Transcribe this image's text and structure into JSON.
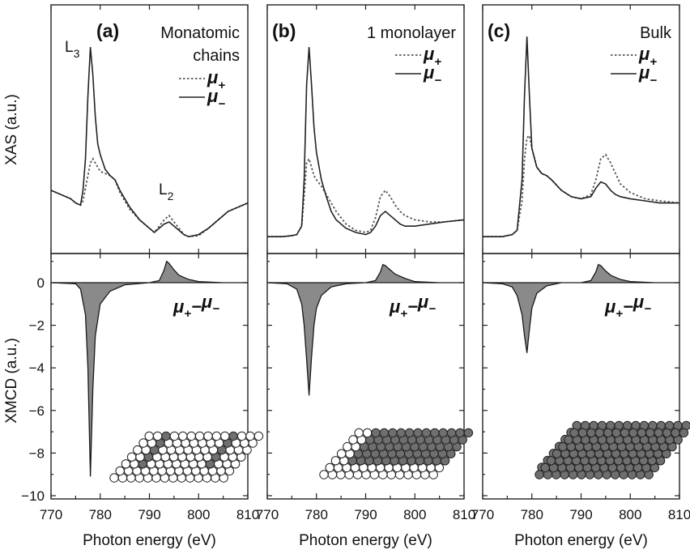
{
  "chart_data": [
    {
      "panel": "a",
      "type": "line",
      "letter": "(a)",
      "title": "Monatomic chains",
      "title_lines": [
        "Monatomic",
        "chains"
      ],
      "edge_labels": {
        "L3": "L",
        "L3_sub": "3",
        "L2": "L",
        "L2_sub": "2"
      },
      "xas": {
        "ylabel": "XAS (a.u.)",
        "ylim": [
          0,
          100
        ],
        "series": [
          {
            "name": "μ+",
            "style": "dotted",
            "x": [
              770,
              772,
              774,
              775,
              776,
              776.5,
              777,
              777.5,
              778,
              778.5,
              779,
              779.5,
              780,
              781,
              782,
              783,
              784,
              786,
              788,
              790,
              791,
              792,
              793,
              794,
              795,
              796,
              797,
              798,
              800,
              802,
              804,
              806,
              808,
              810
            ],
            "y": [
              25,
              23,
              21,
              19,
              18,
              20,
              26,
              32,
              38,
              40,
              38,
              36,
              34,
              33,
              32,
              30,
              24,
              16,
              11,
              7,
              5,
              8,
              11,
              13,
              10,
              7,
              4,
              3,
              3.5,
              7,
              11,
              15,
              17,
              19
            ]
          },
          {
            "name": "μ−",
            "style": "solid",
            "x": [
              770,
              772,
              774,
              775,
              776,
              776.5,
              777,
              777.5,
              778,
              778.5,
              779,
              779.5,
              780,
              781,
              782,
              783,
              784,
              786,
              788,
              790,
              791,
              792,
              793,
              794,
              795,
              796,
              797,
              798,
              800,
              802,
              804,
              806,
              808,
              810
            ],
            "y": [
              25,
              23,
              21,
              19,
              18,
              25,
              40,
              70,
              93,
              80,
              60,
              47,
              42,
              35,
              32,
              30,
              25,
              17,
              11,
              7,
              5,
              7,
              9,
              10,
              8,
              6,
              4,
              3,
              4,
              7,
              11,
              15,
              17,
              19
            ]
          }
        ]
      },
      "xmcd": {
        "ylabel": "XMCD (a.u.)",
        "ylim": [
          -10.5,
          1.5
        ],
        "yticks": [
          0,
          -2,
          -4,
          -6,
          -8,
          -10
        ],
        "label": "μ+−μ−",
        "x": [
          770,
          775,
          776,
          777,
          777.5,
          778,
          778.5,
          779,
          780,
          782,
          785,
          790,
          792,
          793,
          793.5,
          794,
          795,
          796,
          798,
          800,
          805,
          810
        ],
        "y": [
          0,
          -0.05,
          -0.3,
          -1.5,
          -4,
          -9.1,
          -5,
          -2.5,
          -1,
          -0.4,
          -0.1,
          0,
          0.1,
          0.6,
          1.0,
          0.9,
          0.6,
          0.35,
          0.15,
          0.05,
          0,
          0
        ]
      },
      "xlabel": "Photon energy (eV)",
      "xlim": [
        770,
        810
      ],
      "xticks": [
        770,
        780,
        790,
        800,
        810
      ]
    },
    {
      "panel": "b",
      "type": "line",
      "letter": "(b)",
      "title": "1 monolayer",
      "title_lines": [
        "1 monolayer"
      ],
      "xas": {
        "ylim": [
          0,
          100
        ],
        "series": [
          {
            "name": "μ+",
            "style": "dotted",
            "x": [
              770,
              773,
              775,
              776,
              777,
              777.5,
              778,
              778.5,
              779,
              779.5,
              780,
              781,
              782,
              783,
              784,
              786,
              788,
              790,
              791,
              792,
              793,
              794,
              795,
              796,
              797,
              798,
              800,
              803,
              806,
              810
            ],
            "y": [
              3,
              3,
              3.5,
              4,
              8,
              22,
              38,
              40,
              36,
              32,
              30,
              27,
              23,
              19,
              15,
              9,
              6,
              5,
              6,
              12,
              22,
              25,
              22,
              18,
              15,
              13,
              11,
              10,
              10,
              11
            ]
          },
          {
            "name": "μ−",
            "style": "solid",
            "x": [
              770,
              773,
              775,
              776,
              777,
              777.5,
              778,
              778.5,
              779,
              779.5,
              780,
              781,
              782,
              783,
              784,
              786,
              788,
              790,
              791,
              792,
              793,
              794,
              795,
              796,
              797,
              798,
              800,
              803,
              806,
              810
            ],
            "y": [
              3,
              3,
              3.5,
              4,
              8,
              30,
              75,
              93,
              75,
              55,
              43,
              30,
              22,
              15,
              11,
              7,
              5,
              4,
              5,
              8,
              13,
              15,
              13,
              11,
              9,
              8,
              8,
              9,
              10,
              11
            ]
          }
        ]
      },
      "xmcd": {
        "ylim": [
          -10.5,
          1.5
        ],
        "label": "μ+−μ−",
        "x": [
          770,
          774,
          776,
          777,
          777.5,
          778,
          778.5,
          779,
          779.5,
          780,
          781,
          783,
          786,
          790,
          792,
          793,
          793.5,
          794,
          795,
          796,
          798,
          800,
          805,
          810
        ],
        "y": [
          0,
          -0.05,
          -0.3,
          -1,
          -2,
          -3.6,
          -5.3,
          -3.5,
          -2,
          -1.2,
          -0.6,
          -0.2,
          -0.05,
          0,
          0.1,
          0.5,
          0.85,
          0.8,
          0.6,
          0.4,
          0.2,
          0.05,
          0,
          0
        ]
      },
      "xlabel": "Photon energy (eV)",
      "xlim": [
        770,
        810
      ],
      "xticks": [
        770,
        780,
        790,
        800,
        810
      ]
    },
    {
      "panel": "c",
      "type": "line",
      "letter": "(c)",
      "title": "Bulk",
      "title_lines": [
        "Bulk"
      ],
      "xas": {
        "ylim": [
          0,
          100
        ],
        "series": [
          {
            "name": "μ+",
            "style": "dotted",
            "x": [
              770,
              774,
              776,
              777,
              778,
              778.5,
              779,
              779.5,
              780,
              781,
              782,
              783,
              784,
              786,
              788,
              790,
              792,
              793,
              794,
              795,
              796,
              797,
              798,
              800,
              803,
              806,
              810
            ],
            "y": [
              3,
              3,
              4,
              6,
              20,
              40,
              50,
              51,
              45,
              36,
              33,
              32,
              30,
              25,
              22,
              21,
              23,
              30,
              40,
              42,
              38,
              33,
              28,
              24,
              21,
              20,
              19
            ]
          },
          {
            "name": "μ−",
            "style": "solid",
            "x": [
              770,
              774,
              776,
              777,
              778,
              778.5,
              779,
              779.5,
              780,
              781,
              782,
              783,
              784,
              786,
              788,
              790,
              792,
              793,
              794,
              795,
              796,
              797,
              798,
              800,
              803,
              806,
              810
            ],
            "y": [
              3,
              3,
              4,
              6,
              30,
              70,
              98,
              70,
              45,
              36,
              33,
              32,
              30,
              25,
              22,
              21,
              22,
              26,
              29,
              28,
              25,
              23,
              22,
              21,
              20,
              19,
              19
            ]
          }
        ]
      },
      "xmcd": {
        "ylim": [
          -10.5,
          1.5
        ],
        "label": "μ+−μ−",
        "x": [
          770,
          774,
          776,
          777,
          778,
          778.5,
          779,
          779.5,
          780,
          781,
          783,
          786,
          790,
          792,
          793,
          793.5,
          794,
          795,
          796,
          798,
          800,
          805,
          810
        ],
        "y": [
          0,
          -0.05,
          -0.2,
          -0.6,
          -1.5,
          -2.5,
          -3.3,
          -2.2,
          -1.2,
          -0.5,
          -0.15,
          0,
          0,
          0.1,
          0.5,
          0.85,
          0.8,
          0.55,
          0.35,
          0.15,
          0.05,
          0,
          0
        ]
      },
      "xlabel": "Photon energy (eV)",
      "xlim": [
        770,
        810
      ],
      "xticks": [
        770,
        780,
        790,
        800,
        810
      ]
    }
  ],
  "legend": {
    "mu_symbol": "μ",
    "plus_sub": "+",
    "minus_sub": "−"
  },
  "atom_colors": {
    "light": "#ffffff",
    "dark": "#6f6f6f",
    "outline": "#222222"
  }
}
